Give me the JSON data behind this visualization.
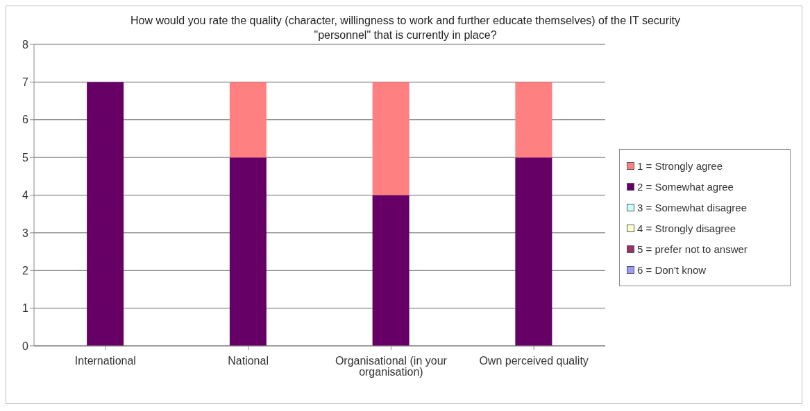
{
  "chart_data": {
    "type": "bar",
    "title": "How would you rate the quality (character, willingness to work and further educate themselves) of the IT security \"personnel\" that is currently in place?",
    "categories": [
      "International",
      "National",
      "Organisational (in your organisation)",
      "Own perceived quality"
    ],
    "stacked": true,
    "series": [
      {
        "name": "6 = Don't know",
        "color": "#9999ff",
        "values": [
          0,
          0,
          0,
          0
        ]
      },
      {
        "name": "5 = prefer not to answer",
        "color": "#993366",
        "values": [
          0,
          0,
          0,
          0
        ]
      },
      {
        "name": "4 = Strongly disagree",
        "color": "#ffffcc",
        "values": [
          0,
          0,
          0,
          0
        ]
      },
      {
        "name": "3 = Somewhat disagree",
        "color": "#ccffff",
        "values": [
          0,
          0,
          0,
          0
        ]
      },
      {
        "name": "2 = Somewhat agree",
        "color": "#660066",
        "values": [
          7,
          5,
          4,
          5
        ]
      },
      {
        "name": "1 = Strongly agree",
        "color": "#ff8080",
        "values": [
          0,
          2,
          3,
          2
        ]
      }
    ],
    "ylim": [
      0,
      8
    ],
    "yticks": [
      0,
      1,
      2,
      3,
      4,
      5,
      6,
      7,
      8
    ],
    "grid": "y",
    "legend": "right"
  }
}
